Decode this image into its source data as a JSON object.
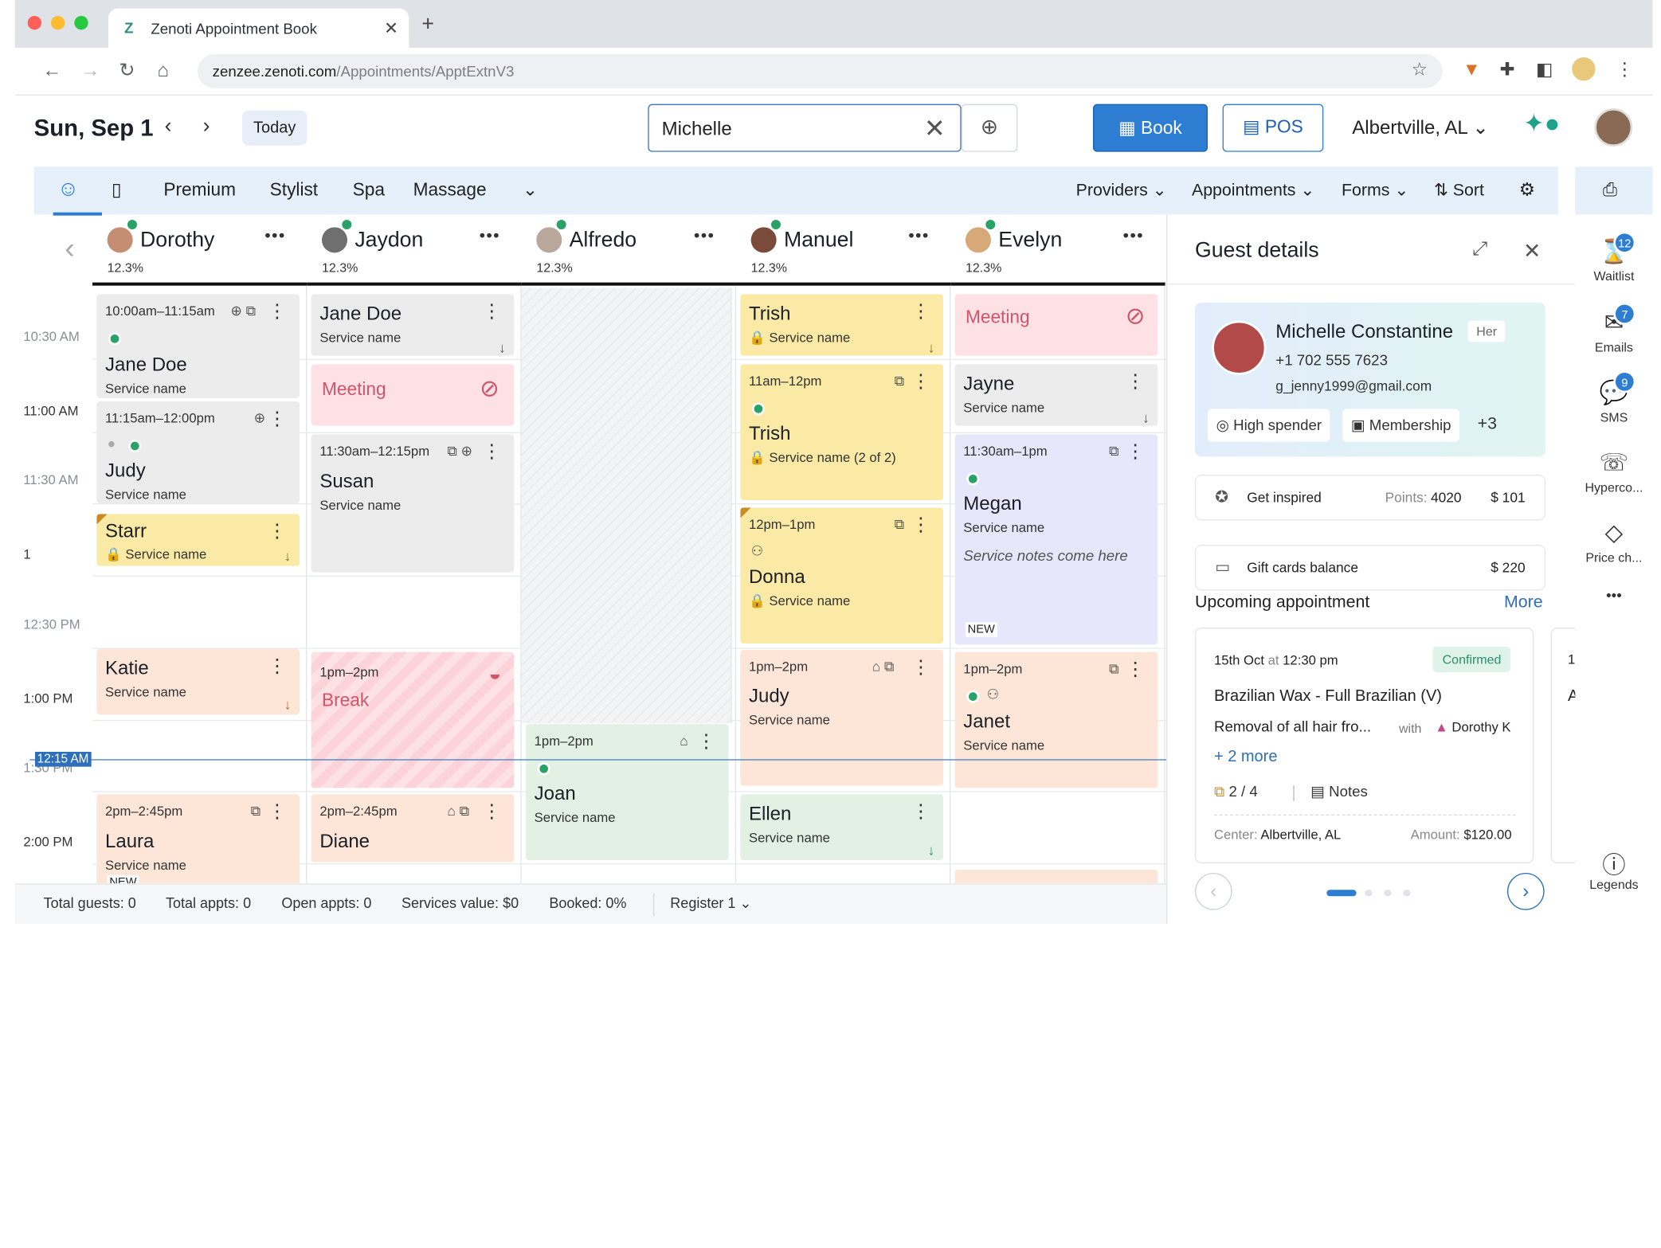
{
  "browser": {
    "tab_title": "Zenoti Appointment Book",
    "tab_icon_glyph": "Z",
    "tab_close": "✕",
    "new_tab": "+",
    "url_domain": "zenzee.zenoti.com",
    "url_path": "/Appointments/ApptExtnV3",
    "dot_colors": [
      "#ff5f57",
      "#febc2e",
      "#28c840"
    ]
  },
  "header": {
    "date": "Sun, Sep 1",
    "prev": "‹",
    "next": "›",
    "today": "Today",
    "search_value": "Michelle",
    "search_clear": "✕",
    "book": "Book",
    "pos": "POS",
    "location": "Albertville, AL"
  },
  "categories": {
    "items": [
      "Premium",
      "Stylist",
      "Spa",
      "Massage"
    ],
    "right": [
      "Providers",
      "Appointments",
      "Forms",
      "Sort"
    ]
  },
  "times": [
    "10:30 AM",
    "11:00 AM",
    "11:30 AM",
    "1",
    "12:30 PM",
    "1:00 PM",
    "1:30 PM",
    "2:00 PM"
  ],
  "now_time": "12:15 AM",
  "providers": [
    {
      "name": "Dorothy",
      "pct": "12.3%"
    },
    {
      "name": "Jaydon",
      "pct": "12.3%"
    },
    {
      "name": "Alfredo",
      "pct": "12.3%"
    },
    {
      "name": "Manuel",
      "pct": "12.3%"
    },
    {
      "name": "Evelyn",
      "pct": "12.3%"
    }
  ],
  "appointments": {
    "d1": {
      "time": "10:00am–11:15am",
      "name": "Jane Doe",
      "svc": "Service name"
    },
    "d2": {
      "time": "11:15am–12:00pm",
      "name": "Judy",
      "svc": "Service name"
    },
    "d3": {
      "name": "Starr",
      "svc": "Service name"
    },
    "d4": {
      "name": "Katie",
      "svc": "Service name"
    },
    "d5": {
      "time": "2pm–2:45pm",
      "name": "Laura",
      "svc": "Service name",
      "badge": "NEW"
    },
    "j1": {
      "name": "Jane Doe",
      "svc": "Service name"
    },
    "j2": {
      "title": "Meeting"
    },
    "j3": {
      "time": "11:30am–12:15pm",
      "name": "Susan",
      "svc": "Service name"
    },
    "j4": {
      "time": "1pm–2pm",
      "title": "Break"
    },
    "j5": {
      "time": "2pm–2:45pm",
      "name": "Diane"
    },
    "a1": {
      "time": "1pm–2pm",
      "name": "Joan",
      "svc": "Service name"
    },
    "m1": {
      "name": "Trish",
      "svc": "Service name"
    },
    "m2": {
      "time": "11am–12pm",
      "name": "Trish",
      "svc": "Service name (2 of 2)"
    },
    "m3": {
      "time": "12pm–1pm",
      "name": "Donna",
      "svc": "Service name"
    },
    "m4": {
      "time": "1pm–2pm",
      "name": "Judy",
      "svc": "Service name"
    },
    "m5": {
      "name": "Ellen",
      "svc": "Service name"
    },
    "e1": {
      "title": "Meeting"
    },
    "e2": {
      "name": "Jayne",
      "svc": "Service name"
    },
    "e3": {
      "time": "11:30am–1pm",
      "name": "Megan",
      "svc": "Service name",
      "notes": "Service notes come here",
      "badge": "NEW"
    },
    "e4": {
      "time": "1pm–2pm",
      "name": "Janet",
      "svc": "Service name"
    }
  },
  "footer": {
    "total_guests_label": "Total guests:",
    "total_guests": "0",
    "total_appts_label": "Total appts:",
    "total_appts": "0",
    "open_appts_label": "Open appts:",
    "open_appts": "0",
    "services_value_label": "Services value:",
    "services_value": "$0",
    "booked_label": "Booked:",
    "booked": "0%",
    "register": "Register 1"
  },
  "guest_panel": {
    "title": "Guest details",
    "name": "Michelle Constantine",
    "pronoun": "Her",
    "phone": "+1 702 555 7623",
    "email": "g_jenny1999@gmail.com",
    "tags": [
      "High spender",
      "Membership"
    ],
    "more_tags": "+3",
    "inspired_label": "Get inspired",
    "points_label": "Points:",
    "points": "4020",
    "inspired_amount": "$ 101",
    "giftcard_label": "Gift cards balance",
    "giftcard_amount": "$ 220",
    "upcoming_label": "Upcoming appointment",
    "more": "More",
    "appt": {
      "date": "15th Oct",
      "at": "at",
      "time": "12:30 pm",
      "status": "Confirmed",
      "svc1": "Brazilian Wax - Full Brazilian (V)",
      "svc2": "Removal of all hair fro...",
      "with": "with",
      "provider": "Dorothy K",
      "plus_more": "+ 2 more",
      "count": "2 / 4",
      "notes": "Notes",
      "center_label": "Center:",
      "center": "Albertville, AL",
      "amount_label": "Amount:",
      "amount": "$120.00"
    },
    "peek": {
      "a": "1",
      "b": "A"
    }
  },
  "rail": {
    "waitlist": "Waitlist",
    "waitlist_count": "12",
    "emails": "Emails",
    "emails_count": "7",
    "sms": "SMS",
    "sms_count": "9",
    "hyperco": "Hyperco...",
    "price": "Price ch...",
    "more": "•••",
    "legends": "Legends"
  }
}
